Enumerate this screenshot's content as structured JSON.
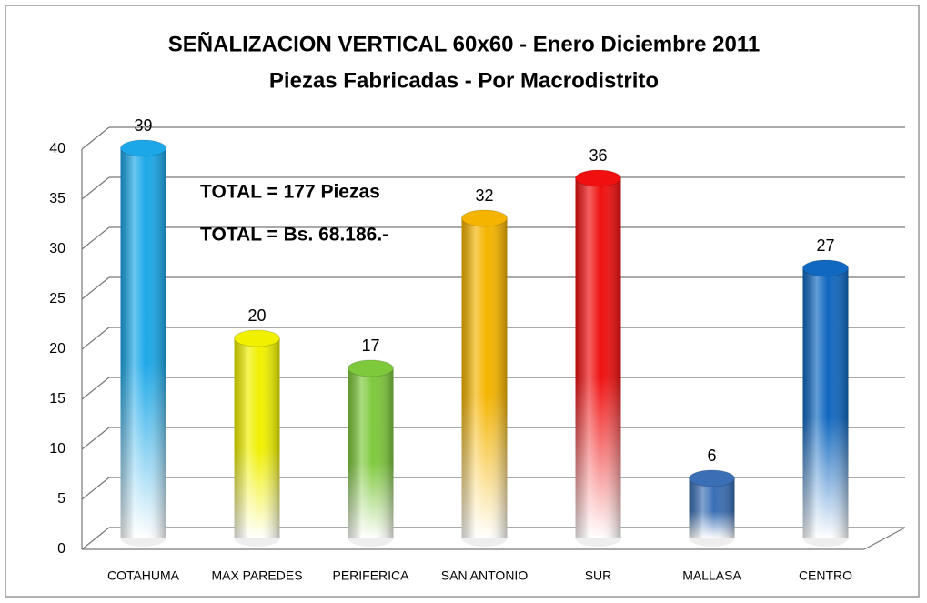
{
  "chart_data": {
    "type": "bar",
    "title": "SEÑALIZACION VERTICAL 60x60  -  Enero  Diciembre 2011",
    "subtitle": "Piezas Fabricadas - Por Macrodistrito",
    "annotations": [
      "TOTAL  =  177 Piezas",
      "TOTAL =  Bs. 68.186.-"
    ],
    "categories": [
      "COTAHUMA",
      "MAX PAREDES",
      "PERIFERICA",
      "SAN ANTONIO",
      "SUR",
      "MALLASA",
      "CENTRO"
    ],
    "values": [
      39,
      20,
      17,
      32,
      36,
      6,
      27
    ],
    "colors": [
      "#1ca8e8",
      "#f0f000",
      "#7ec83c",
      "#f5b400",
      "#f01010",
      "#3a6fb5",
      "#1068c0"
    ],
    "ylim": [
      0,
      40
    ],
    "yticks": [
      0,
      5,
      10,
      15,
      20,
      25,
      30,
      35,
      40
    ],
    "grid": true
  }
}
